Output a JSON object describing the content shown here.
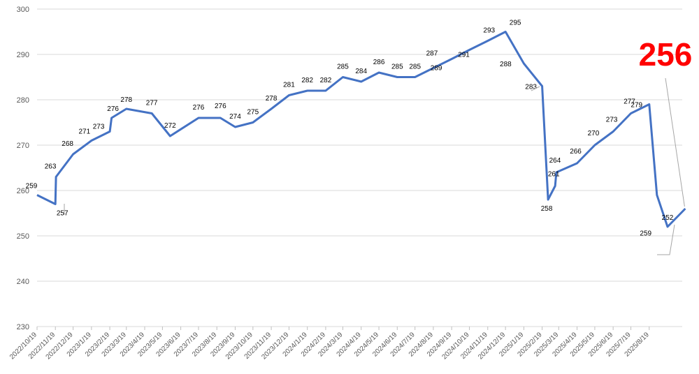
{
  "chart_data": {
    "type": "line",
    "title": "",
    "xlabel": "",
    "ylabel": "",
    "ylim": [
      230,
      300
    ],
    "yticks": [
      230,
      240,
      250,
      260,
      270,
      280,
      290,
      300
    ],
    "grid": "horizontal",
    "legend": "none",
    "line_color": "#4472c4",
    "highlight_color": "#ff0000",
    "x_tick_labels": [
      "2022/10/19",
      "2022/11/19",
      "2022/12/19",
      "2023/1/19",
      "2023/2/19",
      "2023/3/19",
      "2023/4/19",
      "2023/5/19",
      "2023/6/19",
      "2023/7/19",
      "2023/8/19",
      "2023/9/19",
      "2023/10/19",
      "2023/11/19",
      "2023/12/19",
      "2024/1/19",
      "2024/2/19",
      "2024/3/19",
      "2024/4/19",
      "2024/5/19",
      "2024/6/19",
      "2024/7/19",
      "2024/8/19",
      "2024/9/19",
      "2024/10/19",
      "2024/11/19",
      "2024/12/19",
      "2025/1/19",
      "2025/2/19",
      "2025/3/19",
      "2025/4/19",
      "2025/5/19",
      "2025/6/19",
      "2025/7/19",
      "2025/8/19"
    ],
    "x_start": "2022/10/19",
    "x_end": "2025/9/19",
    "points": [
      {
        "x": "2022/10/19",
        "y": 259
      },
      {
        "x": "2022/11/19",
        "y": 257
      },
      {
        "x": "2022/11/20",
        "y": 263
      },
      {
        "x": "2022/12/19",
        "y": 268
      },
      {
        "x": "2023/1/19",
        "y": 271
      },
      {
        "x": "2023/2/19",
        "y": 273
      },
      {
        "x": "2023/2/22",
        "y": 276
      },
      {
        "x": "2023/3/19",
        "y": 278
      },
      {
        "x": "2023/5/1",
        "y": 277
      },
      {
        "x": "2023/6/1",
        "y": 272
      },
      {
        "x": "2023/7/19",
        "y": 276
      },
      {
        "x": "2023/8/25",
        "y": 276
      },
      {
        "x": "2023/9/19",
        "y": 274
      },
      {
        "x": "2023/10/19",
        "y": 275
      },
      {
        "x": "2023/11/19",
        "y": 278
      },
      {
        "x": "2023/12/19",
        "y": 281
      },
      {
        "x": "2024/1/19",
        "y": 282
      },
      {
        "x": "2024/2/19",
        "y": 282
      },
      {
        "x": "2024/3/19",
        "y": 285
      },
      {
        "x": "2024/4/19",
        "y": 284
      },
      {
        "x": "2024/5/19",
        "y": 286
      },
      {
        "x": "2024/6/19",
        "y": 285
      },
      {
        "x": "2024/7/19",
        "y": 285
      },
      {
        "x": "2024/8/19",
        "y": 287
      },
      {
        "x": "2024/9/19",
        "y": 289
      },
      {
        "x": "2024/10/19",
        "y": 291
      },
      {
        "x": "2024/11/19",
        "y": 293
      },
      {
        "x": "2024/12/19",
        "y": 295
      },
      {
        "x": "2025/1/19",
        "y": 288
      },
      {
        "x": "2025/2/19",
        "y": 283
      },
      {
        "x": "2025/3/1",
        "y": 258
      },
      {
        "x": "2025/3/13",
        "y": 261
      },
      {
        "x": "2025/3/15",
        "y": 264
      },
      {
        "x": "2025/4/19",
        "y": 266
      },
      {
        "x": "2025/5/19",
        "y": 270
      },
      {
        "x": "2025/6/19",
        "y": 273
      },
      {
        "x": "2025/7/19",
        "y": 277
      },
      {
        "x": "2025/8/19",
        "y": 279
      },
      {
        "x": "2025/9/1",
        "y": 259
      },
      {
        "x": "2025/9/19",
        "y": 252
      },
      {
        "x": "2025/10/19",
        "y": 256
      }
    ],
    "highlight_label": "256"
  }
}
